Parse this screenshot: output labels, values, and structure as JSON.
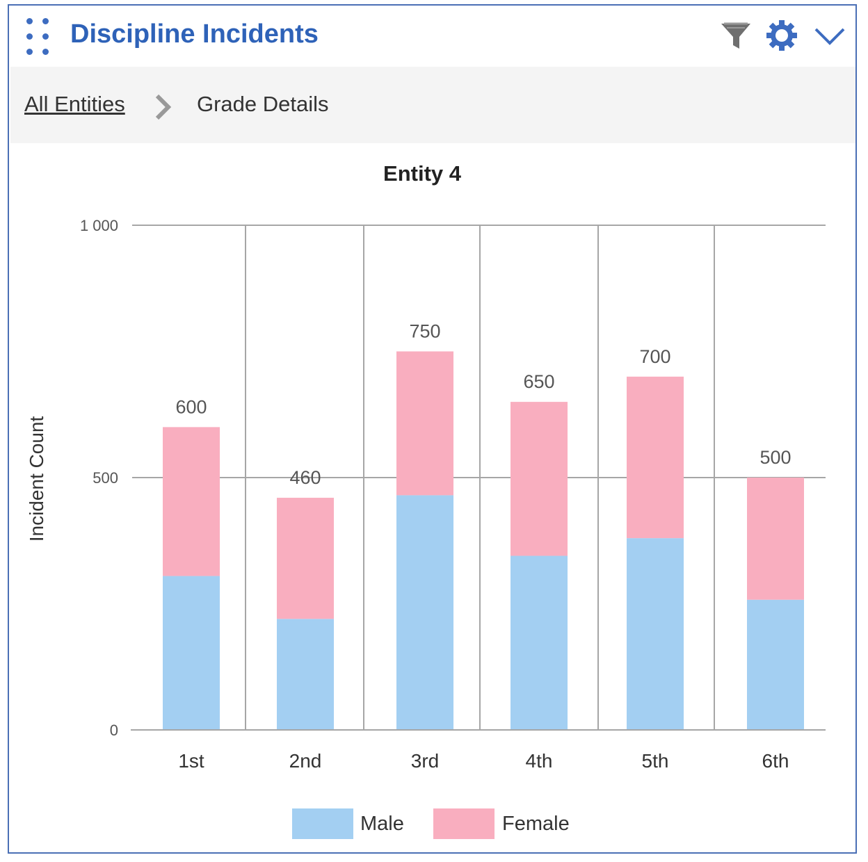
{
  "header": {
    "title": "Discipline Incidents",
    "icons": [
      "drag-handle-icon",
      "filter-icon",
      "gear-icon",
      "chevron-down-icon"
    ]
  },
  "breadcrumb": {
    "root": "All Entities",
    "current": "Grade Details"
  },
  "colors": {
    "accent": "#2e62b8",
    "male": "#a3cff2",
    "female": "#f9aebf",
    "grid": "#a6a6a6"
  },
  "chart_data": {
    "type": "bar",
    "stacked": true,
    "title": "Entity 4",
    "xlabel": "",
    "ylabel": "Incident Count",
    "ylim": [
      0,
      1000
    ],
    "yticks": [
      0,
      500,
      1000
    ],
    "ytick_labels": [
      "0",
      "500",
      "1 000"
    ],
    "categories": [
      "1st",
      "2nd",
      "3rd",
      "4th",
      "5th",
      "6th"
    ],
    "series": [
      {
        "name": "Male",
        "color": "#a3cff2",
        "values": [
          305,
          220,
          465,
          345,
          380,
          258
        ]
      },
      {
        "name": "Female",
        "color": "#f9aebf",
        "values": [
          295,
          240,
          285,
          305,
          320,
          242
        ]
      }
    ],
    "totals": [
      600,
      460,
      750,
      650,
      700,
      500
    ],
    "grid": true,
    "legend_position": "bottom-center"
  }
}
